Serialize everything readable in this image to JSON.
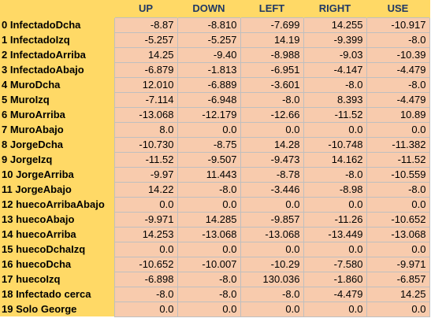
{
  "columns": [
    "UP",
    "DOWN",
    "LEFT",
    "RIGHT",
    "USE"
  ],
  "rows": [
    {
      "label": "0 InfectadoDcha",
      "values": [
        "-8.87",
        "-8.810",
        "-7.699",
        "14.255",
        "-10.917"
      ]
    },
    {
      "label": "1 InfectadoIzq",
      "values": [
        "-5.257",
        "-5.257",
        "14.19",
        "-9.399",
        "-8.0"
      ]
    },
    {
      "label": "2 InfectadoArriba",
      "values": [
        "14.25",
        "-9.40",
        "-8.988",
        "-9.03",
        "-10.39"
      ]
    },
    {
      "label": "3 InfectadoAbajo",
      "values": [
        "-6.879",
        "-1.813",
        "-6.951",
        "-4.147",
        "-4.479"
      ]
    },
    {
      "label": "4 MuroDcha",
      "values": [
        "12.010",
        "-6.889",
        "-3.601",
        "-8.0",
        "-8.0"
      ]
    },
    {
      "label": "5 MuroIzq",
      "values": [
        "-7.114",
        "-6.948",
        "-8.0",
        "8.393",
        "-4.479"
      ]
    },
    {
      "label": "6 MuroArriba",
      "values": [
        "-13.068",
        "-12.179",
        "-12.66",
        "-11.52",
        "10.89"
      ]
    },
    {
      "label": "7 MuroAbajo",
      "values": [
        "8.0",
        "0.0",
        "0.0",
        "0.0",
        "0.0"
      ]
    },
    {
      "label": "8 JorgeDcha",
      "values": [
        "-10.730",
        "-8.75",
        "14.28",
        "-10.748",
        "-11.382"
      ]
    },
    {
      "label": "9 JorgeIzq",
      "values": [
        "-11.52",
        "-9.507",
        "-9.473",
        "14.162",
        "-11.52"
      ]
    },
    {
      "label": "10 JorgeArriba",
      "values": [
        "-9.97",
        "11.443",
        "-8.78",
        "-8.0",
        "-10.559"
      ]
    },
    {
      "label": "11 JorgeAbajo",
      "values": [
        "14.22",
        "-8.0",
        "-3.446",
        "-8.98",
        "-8.0"
      ]
    },
    {
      "label": "12 huecoArribaAbajo",
      "values": [
        "0.0",
        "0.0",
        "0.0",
        "0.0",
        "0.0"
      ]
    },
    {
      "label": "13 huecoAbajo",
      "values": [
        "-9.971",
        "14.285",
        "-9.857",
        "-11.26",
        "-10.652"
      ]
    },
    {
      "label": "14 huecoArriba",
      "values": [
        "14.253",
        "-13.068",
        "-13.068",
        "-13.449",
        "-13.068"
      ]
    },
    {
      "label": "15 huecoDchaIzq",
      "values": [
        "0.0",
        "0.0",
        "0.0",
        "0.0",
        "0.0"
      ]
    },
    {
      "label": "16 huecoDcha",
      "values": [
        "-10.652",
        "-10.007",
        "-10.29",
        "-7.580",
        "-9.971"
      ]
    },
    {
      "label": "17 huecoIzq",
      "values": [
        "-6.898",
        "-8.0",
        "130.036",
        "-1.860",
        "-6.857"
      ]
    },
    {
      "label": "18 Infectado cerca",
      "values": [
        "-8.0",
        "-8.0",
        "-8.0",
        "-4.479",
        "14.25"
      ]
    },
    {
      "label": "19 Solo George",
      "values": [
        "0.0",
        "0.0",
        "0.0",
        "0.0",
        "0.0"
      ]
    }
  ]
}
